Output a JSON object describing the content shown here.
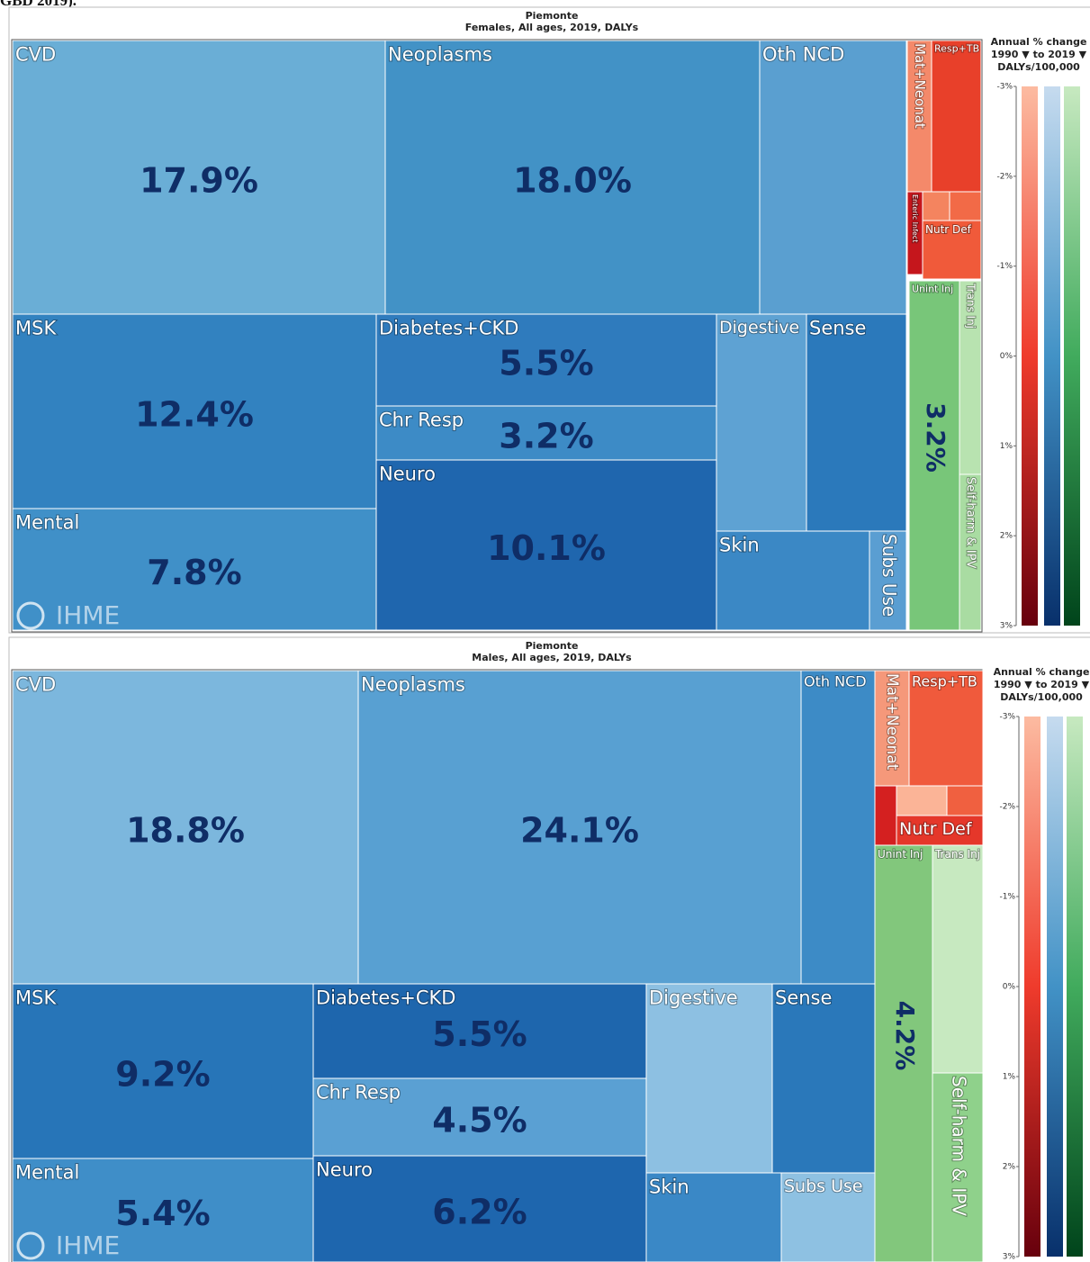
{
  "header_fragment": "GBD 2019).",
  "chart_data": [
    {
      "type": "treemap",
      "title": "Piemonte",
      "subtitle": "Females, All ages, 2019, DALYs",
      "watermark": "IHME",
      "categories": [
        "CVD",
        "Neoplasms",
        "Oth NCD",
        "Mat+Neonat",
        "Resp+TB",
        null,
        null,
        "Enteric Infect",
        "Nutr Def",
        "Unint Inj",
        "Trans Inj",
        "Self-harm & IPV",
        "MSK",
        "Mental",
        "Diabetes+CKD",
        "Chr Resp",
        "Neuro",
        "Digestive",
        "Sense",
        "Skin",
        "Subs Use"
      ],
      "values": [
        17.9,
        18.0,
        7.0,
        0.6,
        1.3,
        0.1,
        0.2,
        0.2,
        0.6,
        3.2,
        0.7,
        0.6,
        12.4,
        7.8,
        5.5,
        3.2,
        10.1,
        3.4,
        3.8,
        2.7,
        0.6
      ],
      "value_labels": [
        "17.9%",
        "18.0%",
        null,
        null,
        null,
        null,
        null,
        null,
        null,
        "3.2%",
        null,
        null,
        "12.4%",
        "7.8%",
        "5.5%",
        "3.2%",
        "10.1%",
        null,
        null,
        null,
        null
      ],
      "colors": [
        "#6aaed6",
        "#4292c6",
        "#5a9fd0",
        "#f4896a",
        "#e8402a",
        "#f4845f",
        "#f26a47",
        "#c5161c",
        "#f05a3a",
        "#78c679",
        "#b8e3b0",
        "#a9dca2",
        "#3282c0",
        "#4090c8",
        "#2f7bbd",
        "#3d8bc6",
        "#1f66ae",
        "#5ea2d3",
        "#2b79bb",
        "#3b88c5",
        "#5a9ed2"
      ],
      "colorbar": {
        "title": [
          "Annual % change",
          "1990 ▼ to 2019 ▼",
          "DALYs/100,000"
        ],
        "lim": [
          -3,
          3
        ],
        "ticks": [
          {
            "value": -3,
            "label": "-3%"
          },
          {
            "value": -2,
            "label": "-2%"
          },
          {
            "value": -1,
            "label": "-1%"
          },
          {
            "value": 0,
            "label": "0%"
          },
          {
            "value": 1,
            "label": "1%"
          },
          {
            "value": 2,
            "label": "2%"
          },
          {
            "value": 3,
            "label": "3%"
          }
        ],
        "colors": [
          [
            "#fcbba1",
            "#ef3b2c",
            "#67000d"
          ],
          [
            "#c6dbef",
            "#4292c6",
            "#08306b"
          ],
          [
            "#c7e9c0",
            "#41ab5d",
            "#00441b"
          ]
        ]
      }
    },
    {
      "type": "treemap",
      "title": "Piemonte",
      "subtitle": "Males, All ages, 2019, DALYs",
      "watermark": "IHME",
      "categories": [
        "CVD",
        "Neoplasms",
        "Oth NCD",
        "Mat+Neonat",
        "Resp+TB",
        null,
        null,
        null,
        "Nutr Def",
        "Unint Inj",
        "Trans Inj",
        "Self-harm & IPV",
        "MSK",
        "Mental",
        "Diabetes+CKD",
        "Chr Resp",
        "Neuro",
        "Digestive",
        "Sense",
        "Skin",
        "Subs Use"
      ],
      "values": [
        18.8,
        24.1,
        4.0,
        0.7,
        1.5,
        0.2,
        0.3,
        0.2,
        0.4,
        4.2,
        2.0,
        1.7,
        9.2,
        5.4,
        5.5,
        4.5,
        6.2,
        4.2,
        3.4,
        2.1,
        1.5
      ],
      "value_labels": [
        "18.8%",
        "24.1%",
        null,
        null,
        null,
        null,
        null,
        null,
        null,
        "4.2%",
        null,
        null,
        "9.2%",
        "5.4%",
        "5.5%",
        "4.5%",
        "6.2%",
        null,
        null,
        null,
        null
      ],
      "colors": [
        "#7cb7dd",
        "#58a0d2",
        "#3d8bc6",
        "#f5987a",
        "#f05a3c",
        "#d42020",
        "#fbb497",
        "#f06040",
        "#e5372a",
        "#82c77c",
        "#c7e9c0",
        "#8fd18b",
        "#2775b8",
        "#3f8ec8",
        "#1e66ad",
        "#5aa0d3",
        "#1e66ae",
        "#8dc0e2",
        "#2a78ba",
        "#3a88c6",
        "#8ec1e2"
      ],
      "colorbar": {
        "title": [
          "Annual % change",
          "1990 ▼ to 2019 ▼",
          "DALYs/100,000"
        ],
        "lim": [
          -3,
          3
        ],
        "ticks": [
          {
            "value": -3,
            "label": "-3%"
          },
          {
            "value": -2,
            "label": "-2%"
          },
          {
            "value": -1,
            "label": "-1%"
          },
          {
            "value": 0,
            "label": "0%"
          },
          {
            "value": 1,
            "label": "1%"
          },
          {
            "value": 2,
            "label": "2%"
          },
          {
            "value": 3,
            "label": "3%"
          }
        ],
        "colors": [
          [
            "#fcbba1",
            "#ef3b2c",
            "#67000d"
          ],
          [
            "#c6dbef",
            "#4292c6",
            "#08306b"
          ],
          [
            "#c7e9c0",
            "#41ab5d",
            "#00441b"
          ]
        ]
      }
    }
  ]
}
